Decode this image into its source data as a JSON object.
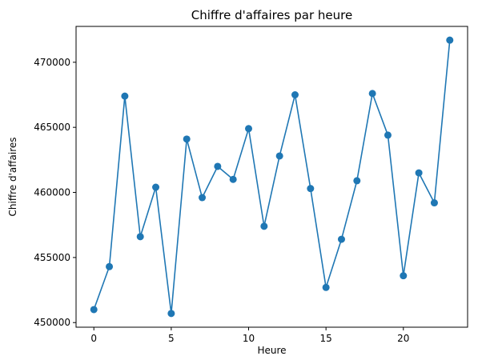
{
  "chart_data": {
    "type": "line",
    "title": "Chiffre d'affaires par heure",
    "xlabel": "Heure",
    "ylabel": "Chiffre d'affaires",
    "x": [
      0,
      1,
      2,
      3,
      4,
      5,
      6,
      7,
      8,
      9,
      10,
      11,
      12,
      13,
      14,
      15,
      16,
      17,
      18,
      19,
      20,
      21,
      22,
      23
    ],
    "series": [
      {
        "values": [
          451000,
          454300,
          467400,
          456600,
          460400,
          450700,
          464100,
          459600,
          462000,
          461000,
          464900,
          457400,
          462800,
          467500,
          460300,
          452700,
          456400,
          460900,
          467600,
          464400,
          453600,
          461500,
          459200,
          471700
        ],
        "color": "#1f77b4",
        "marker": "circle"
      }
    ],
    "xlim": [
      -1.15,
      24.15
    ],
    "ylim": [
      449645,
      472755
    ],
    "xticks": [
      0,
      5,
      10,
      15,
      20
    ],
    "xtick_labels": [
      "0",
      "5",
      "10",
      "15",
      "20"
    ],
    "yticks": [
      450000,
      455000,
      460000,
      465000,
      470000
    ],
    "ytick_labels": [
      "450000",
      "455000",
      "460000",
      "465000",
      "470000"
    ],
    "grid": false
  }
}
